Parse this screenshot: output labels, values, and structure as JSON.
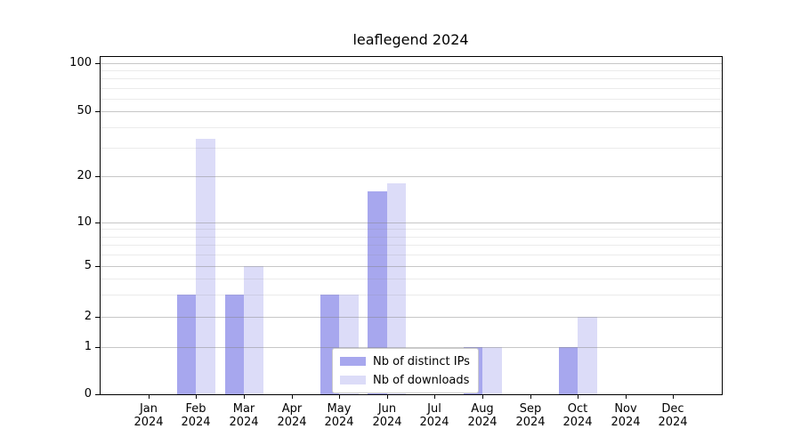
{
  "chart_data": {
    "type": "bar",
    "title": "leaflegend 2024",
    "categories": [
      "Jan 2024",
      "Feb 2024",
      "Mar 2024",
      "Apr 2024",
      "May 2024",
      "Jun 2024",
      "Jul 2024",
      "Aug 2024",
      "Sep 2024",
      "Oct 2024",
      "Nov 2024",
      "Dec 2024"
    ],
    "x": {
      "months": [
        "Jan",
        "Feb",
        "Mar",
        "Apr",
        "May",
        "Jun",
        "Jul",
        "Aug",
        "Sep",
        "Oct",
        "Nov",
        "Dec"
      ],
      "year": "2024"
    },
    "series": [
      {
        "name": "Nb of distinct IPs",
        "color": "#a7a7ee",
        "values": [
          0,
          3,
          3,
          0,
          3,
          16,
          0,
          1,
          0,
          1,
          0,
          0
        ]
      },
      {
        "name": "Nb of downloads",
        "color": "#dcdcf8",
        "values": [
          0,
          34,
          5,
          0,
          3,
          18,
          0,
          1,
          0,
          2,
          0,
          0
        ]
      }
    ],
    "ylabel": "",
    "xlabel": "",
    "ylim": [
      0,
      100
    ],
    "yscale": "log-like",
    "yticks": [
      0,
      1,
      2,
      5,
      10,
      20,
      50,
      100
    ],
    "minor_grid_values": [
      3,
      4,
      6,
      7,
      8,
      9,
      30,
      40,
      60,
      70,
      80,
      90
    ],
    "grid": "on",
    "legend_position": "lower-center"
  },
  "colors": {
    "bar_distinct_ips": "#a7a7ee",
    "bar_downloads": "#dcdcf8",
    "grid_major": "#cacaca",
    "grid_minor": "#ebebeb",
    "spine": "#000000",
    "legend_border": "#cccccc",
    "background": "#ffffff",
    "text": "#000000"
  }
}
